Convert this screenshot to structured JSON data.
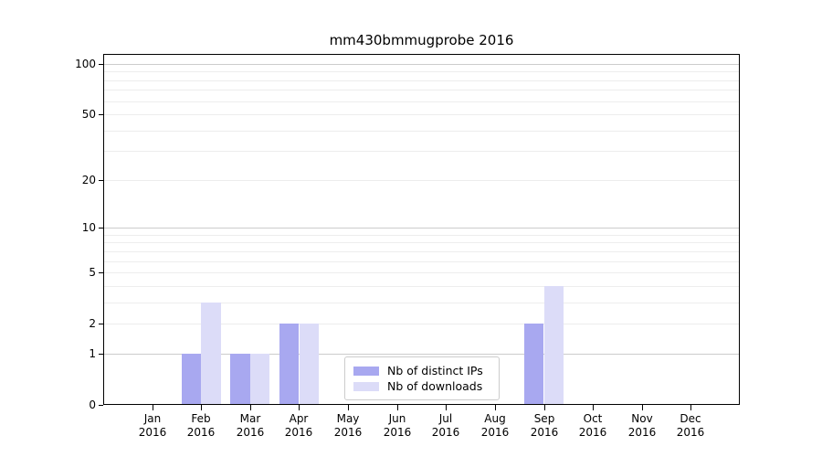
{
  "chart_data": {
    "type": "bar",
    "title": "mm430bmmugprobe 2016",
    "categories": [
      "Jan",
      "Feb",
      "Mar",
      "Apr",
      "May",
      "Jun",
      "Jul",
      "Aug",
      "Sep",
      "Oct",
      "Nov",
      "Dec"
    ],
    "x_year_label": "2016",
    "series": [
      {
        "name": "Nb of distinct IPs",
        "color": "#a8a8f0",
        "values": [
          0,
          1,
          1,
          2,
          0,
          0,
          0,
          0,
          2,
          0,
          0,
          0
        ]
      },
      {
        "name": "Nb of downloads",
        "color": "#dcdcf8",
        "values": [
          0,
          3,
          1,
          2,
          0,
          0,
          0,
          0,
          4,
          0,
          0,
          0
        ]
      }
    ],
    "y_axis": {
      "scale": "log1p",
      "labeled_ticks": [
        0,
        1,
        2,
        5,
        10,
        20,
        50,
        100
      ],
      "minor_ticks": [
        3,
        4,
        6,
        7,
        8,
        9,
        30,
        40,
        60,
        70,
        80,
        90
      ],
      "ylim": [
        0,
        116
      ]
    },
    "legend_position": "lower center",
    "grid": true
  },
  "colors": {
    "background": "#ffffff",
    "spine": "#000000",
    "major_gridline": "#cccccc",
    "minor_gridline": "#ededed",
    "tick_label": "#000000"
  }
}
